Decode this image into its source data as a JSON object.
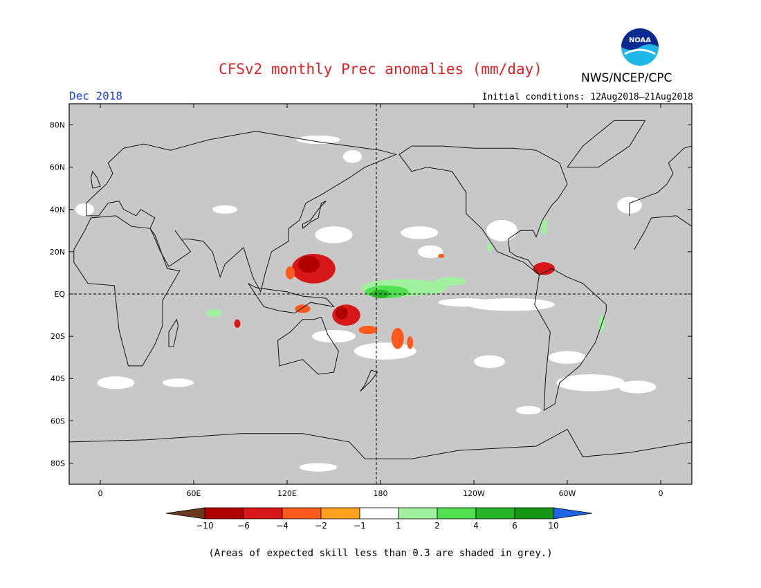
{
  "header": {
    "title": "CFSv2 monthly Prec anomalies (mm/day)",
    "agency": "NWS/NCEP/CPC",
    "valid_month": "Dec 2018",
    "initial_conditions": "Initial conditions: 12Aug2018–21Aug2018",
    "logo_text": "NOAA"
  },
  "map": {
    "lat_labels": [
      "80N",
      "60N",
      "40N",
      "20N",
      "EQ",
      "20S",
      "40S",
      "60S",
      "80S"
    ],
    "lat_values": [
      80,
      60,
      40,
      20,
      0,
      -20,
      -40,
      -60,
      -80
    ],
    "lon_labels": [
      "0",
      "60E",
      "120E",
      "180",
      "120W",
      "60W",
      "0"
    ],
    "lon_values": [
      0,
      60,
      120,
      180,
      240,
      300,
      360
    ],
    "lon_range": [
      -20,
      380
    ],
    "lat_range": [
      -90,
      90
    ],
    "background_grey": "#c8c8c8",
    "anomalies": [
      {
        "name": "west-pacific-dry",
        "lon": 137,
        "lat": 12,
        "rx": 14,
        "ry": 7,
        "level": -4
      },
      {
        "name": "west-pacific-dry-core",
        "lon": 134,
        "lat": 14,
        "rx": 7,
        "ry": 4,
        "level": -6
      },
      {
        "name": "philippines-dry",
        "lon": 122,
        "lat": 10,
        "rx": 3,
        "ry": 3,
        "level": -2
      },
      {
        "name": "png-dry",
        "lon": 158,
        "lat": -10,
        "rx": 9,
        "ry": 5,
        "level": -4
      },
      {
        "name": "png-dry-core",
        "lon": 155,
        "lat": -9,
        "rx": 4,
        "ry": 3,
        "level": -6
      },
      {
        "name": "coral-sea-dry",
        "lon": 172,
        "lat": -17,
        "rx": 6,
        "ry": 2,
        "level": -2
      },
      {
        "name": "maritime-dry",
        "lon": 130,
        "lat": -7,
        "rx": 5,
        "ry": 2,
        "level": -2
      },
      {
        "name": "south-pacific-dry",
        "lon": 191,
        "lat": -21,
        "rx": 4,
        "ry": 5,
        "level": -2
      },
      {
        "name": "south-pacific-dry-2",
        "lon": 199,
        "lat": -23,
        "rx": 2,
        "ry": 3,
        "level": -2
      },
      {
        "name": "indian-ocean-dry",
        "lon": 88,
        "lat": -14,
        "rx": 2,
        "ry": 2,
        "level": -4
      },
      {
        "name": "caribbean-dry",
        "lon": 285,
        "lat": 12,
        "rx": 7,
        "ry": 3,
        "level": -4
      },
      {
        "name": "central-pacific-dry",
        "lon": 219,
        "lat": 18,
        "rx": 2,
        "ry": 1,
        "level": -2
      },
      {
        "name": "equatorial-wet",
        "lon": 195,
        "lat": 3,
        "rx": 28,
        "ry": 4,
        "level": 2
      },
      {
        "name": "equatorial-wet-east",
        "lon": 225,
        "lat": 6,
        "rx": 10,
        "ry": 2,
        "level": 2
      },
      {
        "name": "equatorial-wet-mid",
        "lon": 184,
        "lat": 1,
        "rx": 14,
        "ry": 3,
        "level": 4
      },
      {
        "name": "equatorial-wet-core",
        "lon": 180,
        "lat": 0,
        "rx": 6,
        "ry": 2,
        "level": 6
      },
      {
        "name": "indian-ocean-wet",
        "lon": 73,
        "lat": -9,
        "rx": 5,
        "ry": 2,
        "level": 2
      },
      {
        "name": "brazil-wet",
        "lon": 322,
        "lat": -14,
        "rx": 2,
        "ry": 4,
        "level": 2
      },
      {
        "name": "gulf-stream-wet",
        "lon": 285,
        "lat": 32,
        "rx": 2,
        "ry": 4,
        "level": 2
      },
      {
        "name": "mexico-wet",
        "lon": 250,
        "lat": 22,
        "rx": 2,
        "ry": 2,
        "level": 1
      }
    ],
    "white_patches": [
      {
        "lon": 150,
        "lat": 28,
        "rx": 12,
        "ry": 4
      },
      {
        "lon": 205,
        "lat": 29,
        "rx": 12,
        "ry": 3
      },
      {
        "lon": 212,
        "lat": 20,
        "rx": 8,
        "ry": 3
      },
      {
        "lon": 258,
        "lat": 30,
        "rx": 10,
        "ry": 5
      },
      {
        "lon": 264,
        "lat": -5,
        "rx": 28,
        "ry": 3
      },
      {
        "lon": 235,
        "lat": -4,
        "rx": 18,
        "ry": 2
      },
      {
        "lon": 183,
        "lat": -27,
        "rx": 20,
        "ry": 4
      },
      {
        "lon": 150,
        "lat": -20,
        "rx": 14,
        "ry": 3
      },
      {
        "lon": 10,
        "lat": -42,
        "rx": 12,
        "ry": 3
      },
      {
        "lon": 50,
        "lat": -42,
        "rx": 10,
        "ry": 2
      },
      {
        "lon": 315,
        "lat": -42,
        "rx": 22,
        "ry": 4
      },
      {
        "lon": 345,
        "lat": -44,
        "rx": 12,
        "ry": 3
      },
      {
        "lon": 250,
        "lat": -32,
        "rx": 10,
        "ry": 3
      },
      {
        "lon": 300,
        "lat": -30,
        "rx": 12,
        "ry": 3
      },
      {
        "lon": -10,
        "lat": 40,
        "rx": 6,
        "ry": 3
      },
      {
        "lon": 340,
        "lat": 42,
        "rx": 8,
        "ry": 4
      },
      {
        "lon": 80,
        "lat": 40,
        "rx": 8,
        "ry": 2
      },
      {
        "lon": 140,
        "lat": 73,
        "rx": 14,
        "ry": 2
      },
      {
        "lon": 162,
        "lat": 65,
        "rx": 6,
        "ry": 3
      },
      {
        "lon": 275,
        "lat": -55,
        "rx": 8,
        "ry": 2
      },
      {
        "lon": 140,
        "lat": -82,
        "rx": 12,
        "ry": 2
      }
    ]
  },
  "legend": {
    "labels": [
      "-10",
      "-6",
      "-4",
      "-2",
      "-1",
      "1",
      "2",
      "4",
      "6",
      "10"
    ],
    "colors": [
      "#6b3a1e",
      "#b00000",
      "#d81818",
      "#ff5a1e",
      "#ffa01e",
      "#ffffff",
      "#a0f0a0",
      "#50e050",
      "#28b428",
      "#149614",
      "#1e64e6"
    ]
  },
  "footnote": "(Areas of expected skill less than 0.3 are shaded in grey.)"
}
